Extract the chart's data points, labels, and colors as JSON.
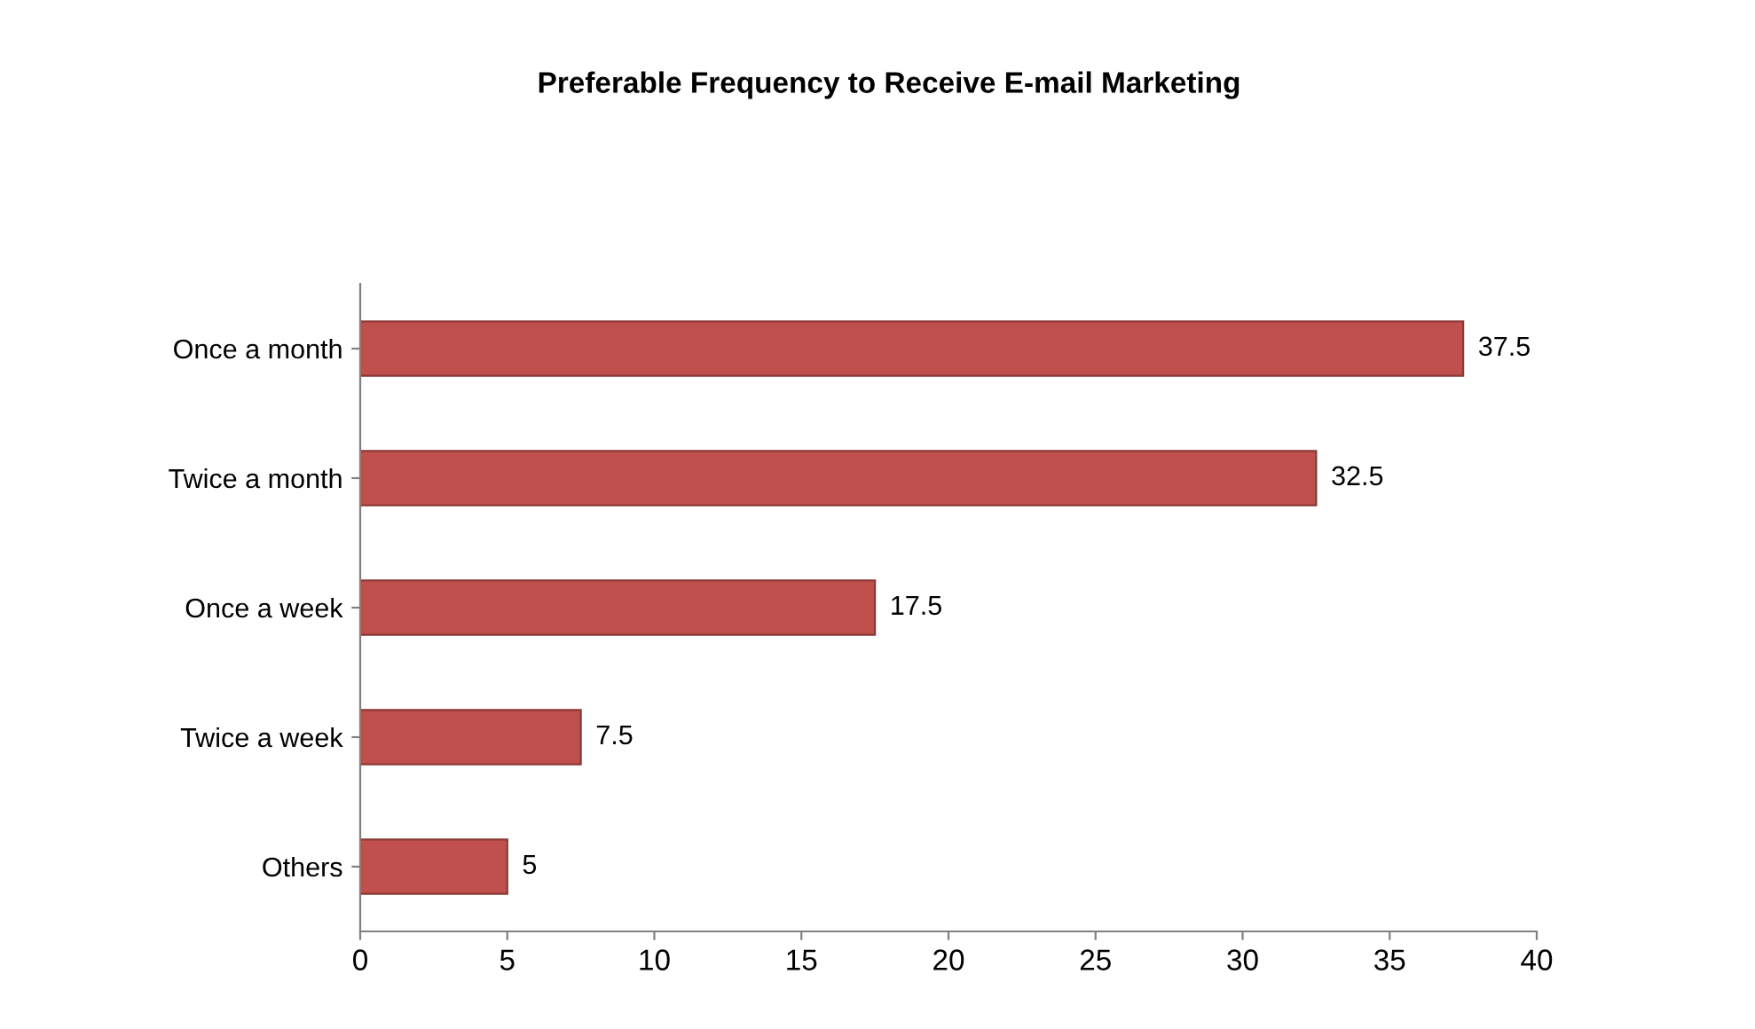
{
  "chart_data": {
    "type": "bar",
    "orientation": "horizontal",
    "title": "Preferable Frequency to Receive E-mail Marketing",
    "categories": [
      "Once a month",
      "Twice a month",
      "Once a week",
      "Twice a week",
      "Others"
    ],
    "values": [
      37.5,
      32.5,
      17.5,
      7.5,
      5
    ],
    "color": "#c0504d",
    "xlim": [
      0,
      40
    ],
    "xticks": [
      0,
      5,
      10,
      15,
      20,
      25,
      30,
      35,
      40
    ],
    "data_labels": true,
    "grid": false,
    "legend": false
  }
}
